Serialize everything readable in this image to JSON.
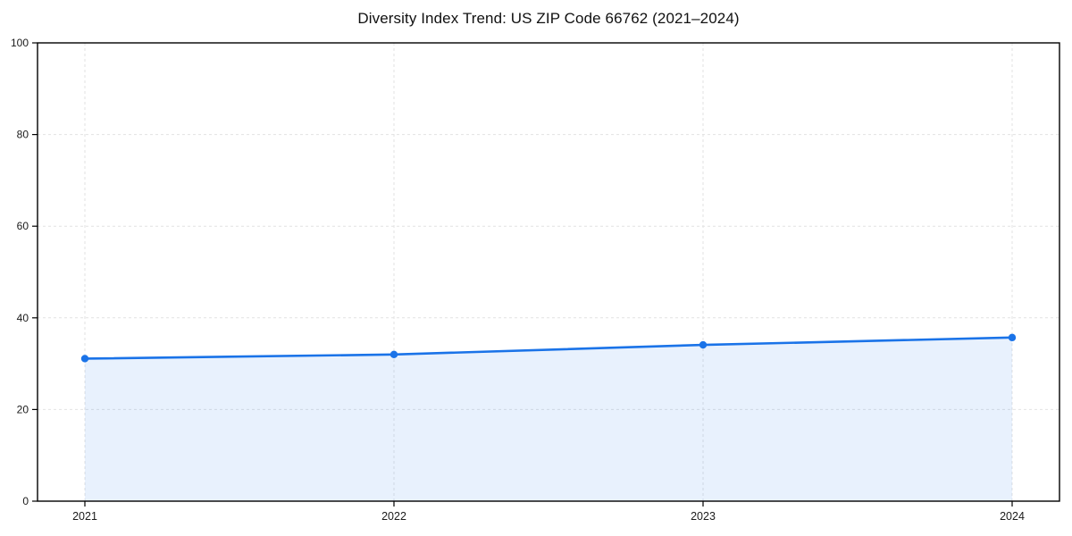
{
  "chart_data": {
    "type": "area",
    "title": "Diversity Index Trend: US ZIP Code 66762 (2021–2024)",
    "categories": [
      "2021",
      "2022",
      "2023",
      "2024"
    ],
    "values": [
      31.1,
      32.0,
      34.1,
      35.7
    ],
    "xlabel": "",
    "ylabel": "",
    "ylim": [
      0,
      100
    ],
    "yticks": [
      0,
      20,
      40,
      60,
      80,
      100
    ],
    "grid": true,
    "grid_style": "dashed",
    "legend": "none",
    "markers": true,
    "line_color": "#1a73e8",
    "fill_color": "#1a73e8",
    "fill_opacity": 0.1,
    "grid_color": "#e2e2e2",
    "axis_color": "#000000",
    "tick_label_color": "#1a1a1a",
    "title_color": "#111111",
    "background": "#ffffff"
  }
}
